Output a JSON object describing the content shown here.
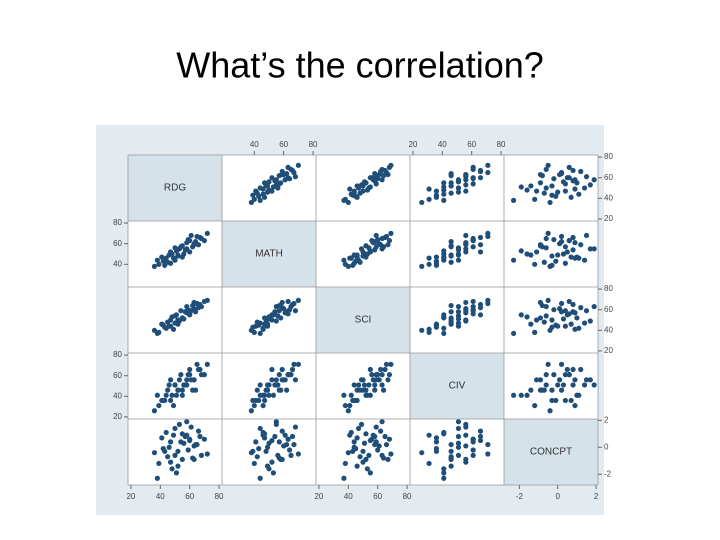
{
  "chart_data": {
    "type": "scatter-matrix",
    "title": "What’s the correlation?",
    "color": "#1f4e79",
    "variables": [
      {
        "name": "RDG",
        "lim": [
          18,
          82
        ],
        "ticks": [
          20,
          40,
          60,
          80
        ]
      },
      {
        "name": "MATH",
        "lim": [
          18,
          82
        ],
        "ticks": [
          40,
          60,
          80
        ]
      },
      {
        "name": "SCI",
        "lim": [
          18,
          82
        ],
        "ticks": [
          20,
          40,
          60,
          80
        ]
      },
      {
        "name": "CIV",
        "lim": [
          18,
          82
        ],
        "ticks": [
          20,
          40,
          60,
          80
        ]
      },
      {
        "name": "CONCPT",
        "lim": [
          -2.8,
          2.1
        ],
        "ticks": [
          -2,
          0,
          2
        ]
      }
    ],
    "observations": [
      [
        47,
        41,
        44,
        36,
        0.4
      ],
      [
        52,
        48,
        50,
        46,
        -0.3
      ],
      [
        57,
        54,
        58,
        51,
        0.8
      ],
      [
        63,
        60,
        61,
        56,
        0.1
      ],
      [
        68,
        65,
        63,
        61,
        -0.6
      ],
      [
        44,
        46,
        42,
        41,
        1.1
      ],
      [
        39,
        40,
        38,
        31,
        -1.2
      ],
      [
        60,
        52,
        55,
        66,
        0.5
      ],
      [
        55,
        58,
        52,
        46,
        -0.9
      ],
      [
        50,
        44,
        47,
        51,
        1.4
      ],
      [
        65,
        67,
        66,
        71,
        0.2
      ],
      [
        42,
        43,
        45,
        36,
        -0.1
      ],
      [
        58,
        61,
        57,
        56,
        0.9
      ],
      [
        48,
        50,
        53,
        41,
        -1.6
      ],
      [
        70,
        63,
        68,
        61,
        0.6
      ],
      [
        36,
        38,
        40,
        26,
        -0.4
      ],
      [
        53,
        55,
        49,
        56,
        1.7
      ],
      [
        62,
        57,
        64,
        46,
        -0.8
      ],
      [
        46,
        49,
        44,
        51,
        0.0
      ],
      [
        59,
        64,
        60,
        61,
        -0.2
      ],
      [
        41,
        47,
        46,
        36,
        0.7
      ],
      [
        66,
        59,
        62,
        66,
        1.2
      ],
      [
        51,
        53,
        55,
        41,
        -1.9
      ],
      [
        56,
        50,
        51,
        51,
        0.3
      ],
      [
        45,
        42,
        48,
        46,
        -0.7
      ],
      [
        61,
        68,
        59,
        56,
        1.5
      ],
      [
        49,
        46,
        41,
        31,
        0.9
      ],
      [
        72,
        70,
        69,
        71,
        -0.5
      ],
      [
        54,
        57,
        59,
        61,
        0.4
      ],
      [
        38,
        44,
        37,
        41,
        -2.3
      ],
      [
        64,
        62,
        58,
        46,
        0.2
      ],
      [
        47,
        52,
        50,
        56,
        -1.1
      ],
      [
        58,
        55,
        63,
        51,
        1.9
      ],
      [
        43,
        39,
        43,
        36,
        -0.3
      ],
      [
        67,
        66,
        65,
        66,
        0.8
      ],
      [
        52,
        49,
        46,
        46,
        -1.4
      ],
      [
        60,
        63,
        56,
        61,
        0.6
      ],
      [
        50,
        56,
        54,
        51,
        -0.6
      ],
      [
        55,
        47,
        52,
        41,
        1.0
      ],
      [
        63,
        59,
        67,
        56,
        -0.9
      ]
    ]
  }
}
